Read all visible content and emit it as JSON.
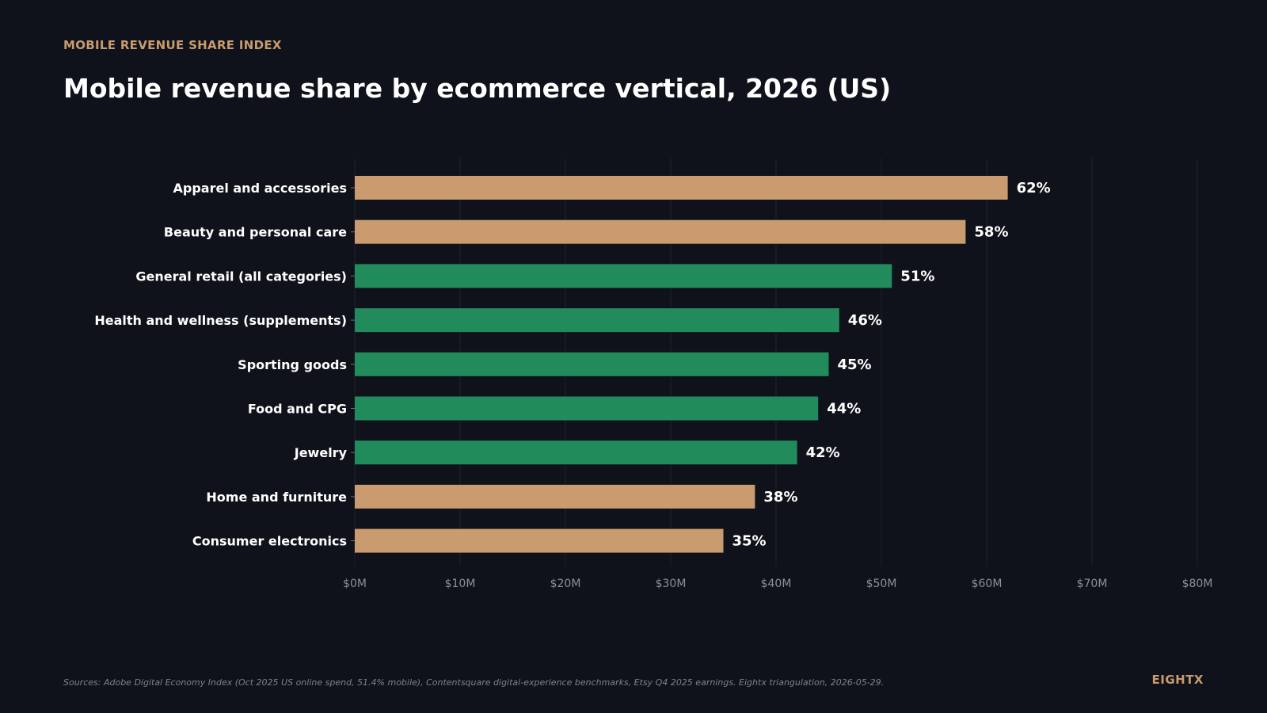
{
  "header": {
    "eyebrow": "MOBILE REVENUE SHARE INDEX",
    "title": "Mobile revenue share by ecommerce vertical, 2026 (US)"
  },
  "footer": {
    "source": "Sources: Adobe Digital Economy Index (Oct 2025 US online spend, 51.4% mobile), Contentsquare digital-experience benchmarks, Etsy Q4 2025 earnings. Eightx triangulation, 2026-05-29.",
    "brand": "EIGHTX"
  },
  "colors": {
    "background": "#0f121a",
    "accent": "#c99b6e",
    "highlight": "#228b5c",
    "grid": "#1d212b",
    "tick_text": "#8a8f9c"
  },
  "chart_data": {
    "type": "bar",
    "orientation": "horizontal",
    "categories": [
      "Apparel and accessories",
      "Beauty and personal care",
      "General retail (all categories)",
      "Health and wellness (supplements)",
      "Sporting goods",
      "Food and CPG",
      "Jewelry",
      "Home and furniture",
      "Consumer electronics"
    ],
    "values": [
      62,
      58,
      51,
      46,
      45,
      44,
      42,
      38,
      35
    ],
    "value_labels": [
      "62%",
      "58%",
      "51%",
      "46%",
      "45%",
      "44%",
      "42%",
      "38%",
      "35%"
    ],
    "bar_colors": [
      "#c99b6e",
      "#c99b6e",
      "#228b5c",
      "#228b5c",
      "#228b5c",
      "#228b5c",
      "#228b5c",
      "#c99b6e",
      "#c99b6e"
    ],
    "xlim": [
      0,
      80
    ],
    "x_ticks": [
      0,
      10,
      20,
      30,
      40,
      50,
      60,
      70,
      80
    ],
    "x_tick_labels": [
      "$0M",
      "$10M",
      "$20M",
      "$30M",
      "$40M",
      "$50M",
      "$60M",
      "$70M",
      "$80M"
    ],
    "grid": "vertical",
    "legend": "none"
  }
}
